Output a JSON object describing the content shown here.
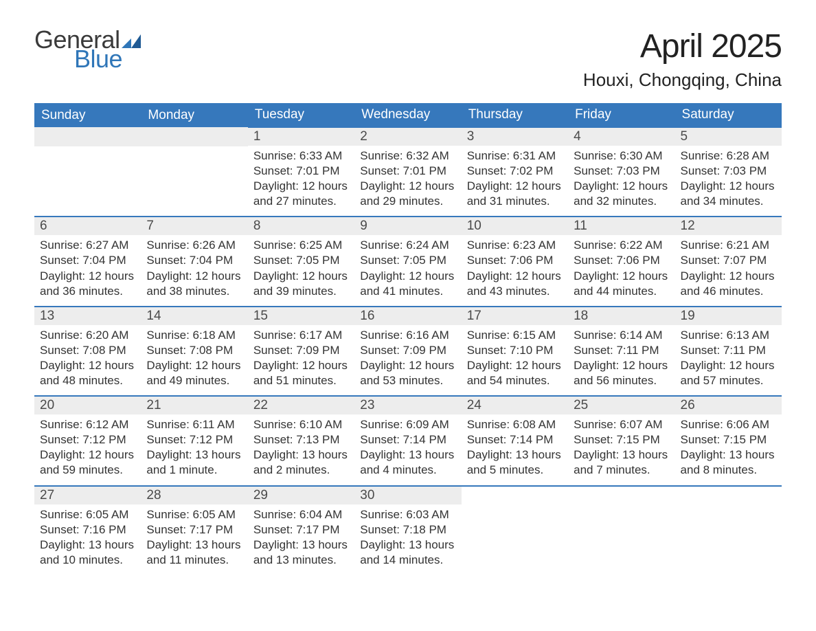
{
  "brand": {
    "word1": "General",
    "word2": "Blue"
  },
  "title": "April 2025",
  "location": "Houxi, Chongqing, China",
  "colors": {
    "header_bg": "#3678bc",
    "header_text": "#ffffff",
    "daybar_bg": "#ededed",
    "accent": "#2f76b8",
    "text": "#333333"
  },
  "weekdays": [
    "Sunday",
    "Monday",
    "Tuesday",
    "Wednesday",
    "Thursday",
    "Friday",
    "Saturday"
  ],
  "weeks": [
    [
      null,
      null,
      {
        "n": "1",
        "sunrise": "6:33 AM",
        "sunset": "7:01 PM",
        "daylight": "12 hours and 27 minutes."
      },
      {
        "n": "2",
        "sunrise": "6:32 AM",
        "sunset": "7:01 PM",
        "daylight": "12 hours and 29 minutes."
      },
      {
        "n": "3",
        "sunrise": "6:31 AM",
        "sunset": "7:02 PM",
        "daylight": "12 hours and 31 minutes."
      },
      {
        "n": "4",
        "sunrise": "6:30 AM",
        "sunset": "7:03 PM",
        "daylight": "12 hours and 32 minutes."
      },
      {
        "n": "5",
        "sunrise": "6:28 AM",
        "sunset": "7:03 PM",
        "daylight": "12 hours and 34 minutes."
      }
    ],
    [
      {
        "n": "6",
        "sunrise": "6:27 AM",
        "sunset": "7:04 PM",
        "daylight": "12 hours and 36 minutes."
      },
      {
        "n": "7",
        "sunrise": "6:26 AM",
        "sunset": "7:04 PM",
        "daylight": "12 hours and 38 minutes."
      },
      {
        "n": "8",
        "sunrise": "6:25 AM",
        "sunset": "7:05 PM",
        "daylight": "12 hours and 39 minutes."
      },
      {
        "n": "9",
        "sunrise": "6:24 AM",
        "sunset": "7:05 PM",
        "daylight": "12 hours and 41 minutes."
      },
      {
        "n": "10",
        "sunrise": "6:23 AM",
        "sunset": "7:06 PM",
        "daylight": "12 hours and 43 minutes."
      },
      {
        "n": "11",
        "sunrise": "6:22 AM",
        "sunset": "7:06 PM",
        "daylight": "12 hours and 44 minutes."
      },
      {
        "n": "12",
        "sunrise": "6:21 AM",
        "sunset": "7:07 PM",
        "daylight": "12 hours and 46 minutes."
      }
    ],
    [
      {
        "n": "13",
        "sunrise": "6:20 AM",
        "sunset": "7:08 PM",
        "daylight": "12 hours and 48 minutes."
      },
      {
        "n": "14",
        "sunrise": "6:18 AM",
        "sunset": "7:08 PM",
        "daylight": "12 hours and 49 minutes."
      },
      {
        "n": "15",
        "sunrise": "6:17 AM",
        "sunset": "7:09 PM",
        "daylight": "12 hours and 51 minutes."
      },
      {
        "n": "16",
        "sunrise": "6:16 AM",
        "sunset": "7:09 PM",
        "daylight": "12 hours and 53 minutes."
      },
      {
        "n": "17",
        "sunrise": "6:15 AM",
        "sunset": "7:10 PM",
        "daylight": "12 hours and 54 minutes."
      },
      {
        "n": "18",
        "sunrise": "6:14 AM",
        "sunset": "7:11 PM",
        "daylight": "12 hours and 56 minutes."
      },
      {
        "n": "19",
        "sunrise": "6:13 AM",
        "sunset": "7:11 PM",
        "daylight": "12 hours and 57 minutes."
      }
    ],
    [
      {
        "n": "20",
        "sunrise": "6:12 AM",
        "sunset": "7:12 PM",
        "daylight": "12 hours and 59 minutes."
      },
      {
        "n": "21",
        "sunrise": "6:11 AM",
        "sunset": "7:12 PM",
        "daylight": "13 hours and 1 minute."
      },
      {
        "n": "22",
        "sunrise": "6:10 AM",
        "sunset": "7:13 PM",
        "daylight": "13 hours and 2 minutes."
      },
      {
        "n": "23",
        "sunrise": "6:09 AM",
        "sunset": "7:14 PM",
        "daylight": "13 hours and 4 minutes."
      },
      {
        "n": "24",
        "sunrise": "6:08 AM",
        "sunset": "7:14 PM",
        "daylight": "13 hours and 5 minutes."
      },
      {
        "n": "25",
        "sunrise": "6:07 AM",
        "sunset": "7:15 PM",
        "daylight": "13 hours and 7 minutes."
      },
      {
        "n": "26",
        "sunrise": "6:06 AM",
        "sunset": "7:15 PM",
        "daylight": "13 hours and 8 minutes."
      }
    ],
    [
      {
        "n": "27",
        "sunrise": "6:05 AM",
        "sunset": "7:16 PM",
        "daylight": "13 hours and 10 minutes."
      },
      {
        "n": "28",
        "sunrise": "6:05 AM",
        "sunset": "7:17 PM",
        "daylight": "13 hours and 11 minutes."
      },
      {
        "n": "29",
        "sunrise": "6:04 AM",
        "sunset": "7:17 PM",
        "daylight": "13 hours and 13 minutes."
      },
      {
        "n": "30",
        "sunrise": "6:03 AM",
        "sunset": "7:18 PM",
        "daylight": "13 hours and 14 minutes."
      },
      null,
      null,
      null
    ]
  ],
  "labels": {
    "sunrise": "Sunrise: ",
    "sunset": "Sunset: ",
    "daylight": "Daylight: "
  }
}
